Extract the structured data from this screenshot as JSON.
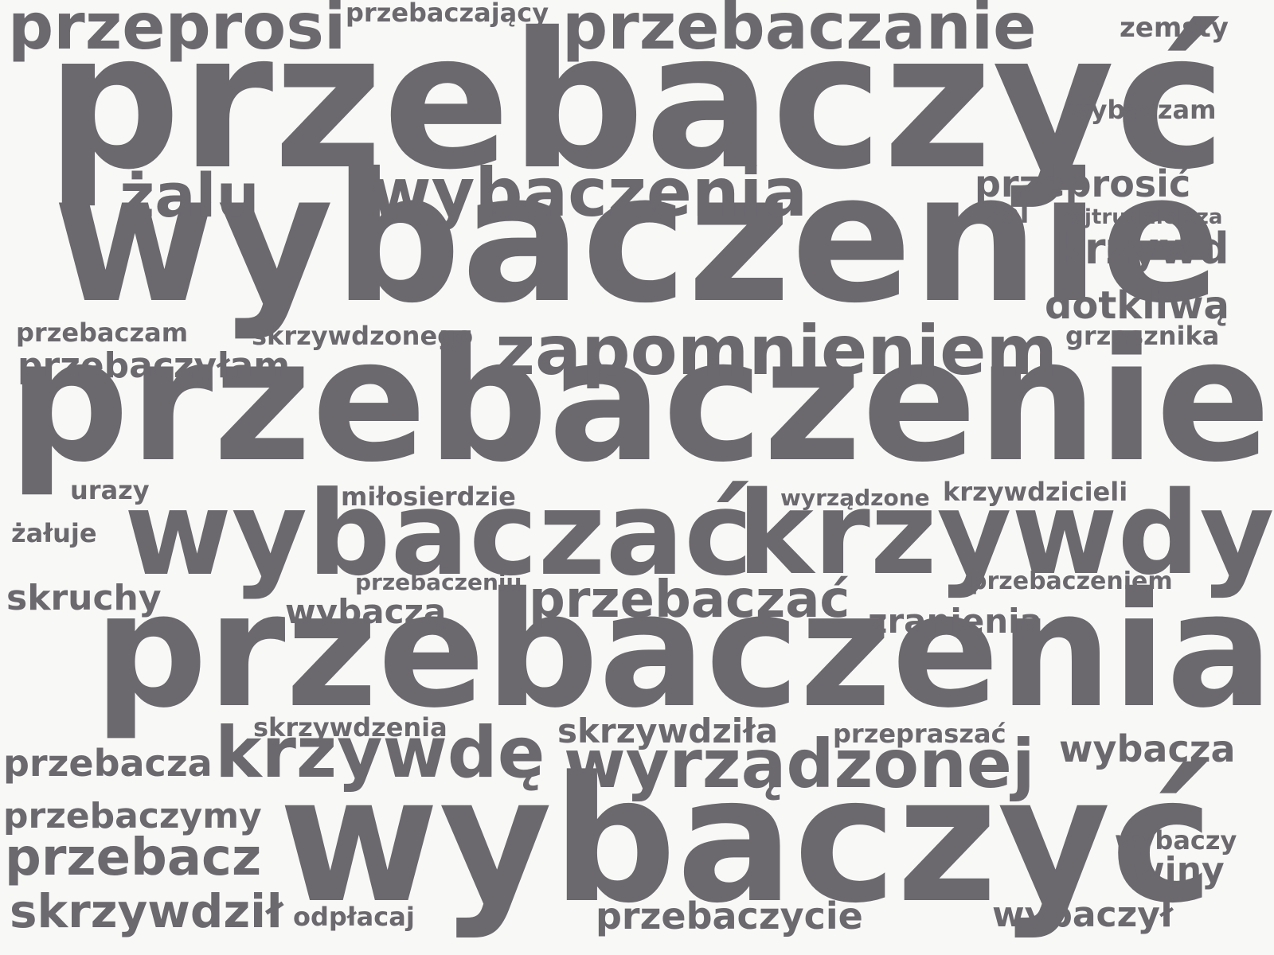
{
  "word_cloud": {
    "text_color": "#6b686e",
    "background_color": "#f8f8f6",
    "words": [
      "przebaczyć",
      "wybaczenie",
      "przebaczenie",
      "przebaczenia",
      "wybaczyć",
      "wybaczać",
      "krzywdy",
      "zapomnieniem",
      "wybaczenia",
      "przebaczanie",
      "przeprosi",
      "żalu",
      "krzywdę",
      "wyrządzonej",
      "przebaczać",
      "przeprosić",
      "krzywd",
      "dotkliwą",
      "przebacz",
      "skrzywdził",
      "przebaczycie",
      "wybacza",
      "wybaczył",
      "przebaczyłam",
      "przebacza",
      "przebaczymy",
      "skrzywdziła",
      "zranienia",
      "skruchy",
      "wybaczą",
      "wybaczam",
      "winy",
      "zemsty",
      "przebaczający",
      "przebaczam",
      "skrzywdzonego",
      "grzesznika",
      "najtrudniejsza",
      "żal",
      "urazy",
      "miłosierdzie",
      "wyrządzone",
      "krzywdzicieli",
      "żałuje",
      "przebaczeniu",
      "przebaczeniem",
      "skrzywdzenia",
      "przepraszać",
      "wybaczy",
      "odpłacaj"
    ]
  }
}
